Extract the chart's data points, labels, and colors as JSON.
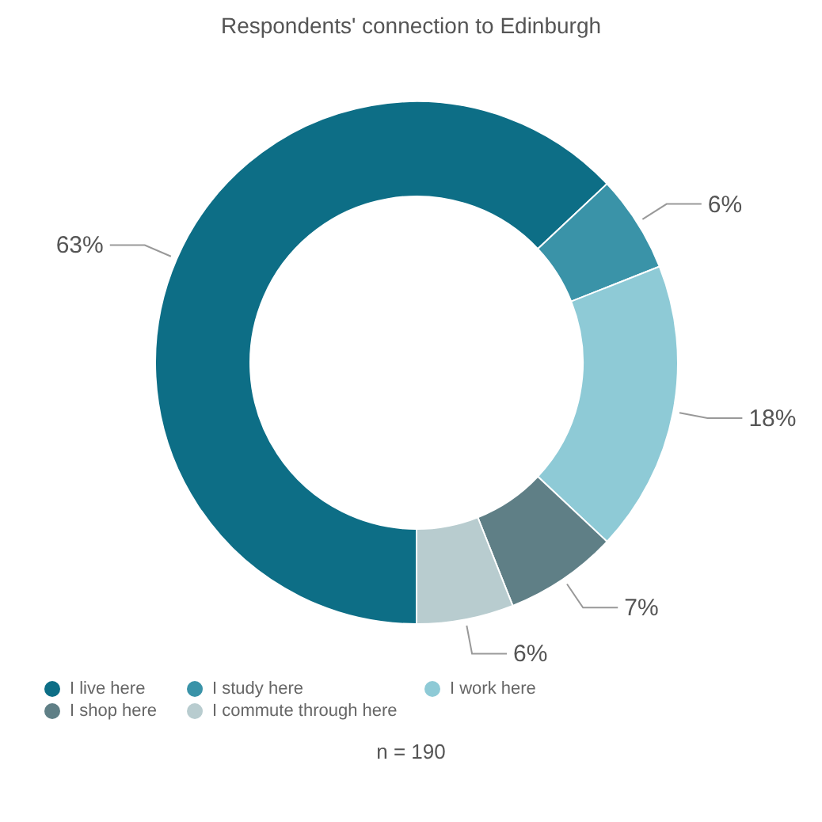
{
  "chart_data": {
    "type": "donut",
    "title": "Respondents' connection to Edinburgh",
    "categories": [
      "I live here",
      "I study here",
      "I work here",
      "I shop here",
      "I commute through here"
    ],
    "values": [
      63,
      6,
      18,
      7,
      6
    ],
    "value_labels": [
      "63%",
      "6%",
      "18%",
      "7%",
      "6%"
    ],
    "colors": [
      "#0d6e86",
      "#3a93a8",
      "#8ecad6",
      "#5f7f86",
      "#b8cccf"
    ],
    "legend": "bottom",
    "annotations": [
      "n = 190"
    ]
  }
}
